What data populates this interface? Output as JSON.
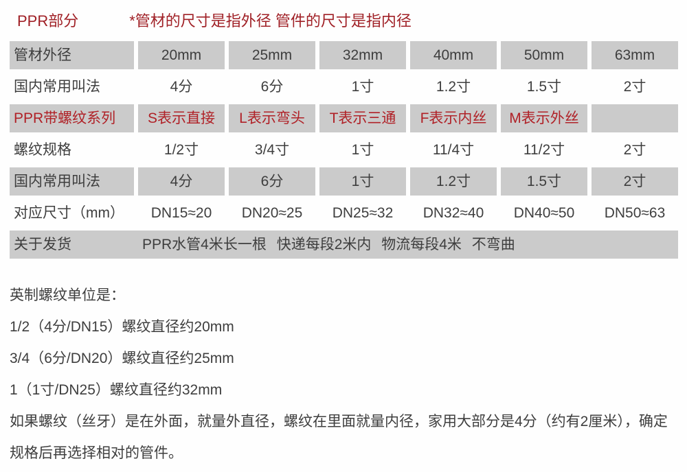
{
  "colors": {
    "title_red": "#a02026",
    "table_red": "#b02127",
    "cell_gray": "#cbcbcb",
    "text_dark": "#3e3e3e",
    "page_bg": "#fefefe"
  },
  "header": {
    "section_title": "PPR部分",
    "note": "*管材的尺寸是指外径 管件的尺寸是指内径"
  },
  "table": {
    "rows": [
      {
        "label": "管材外径",
        "cells": [
          "20mm",
          "25mm",
          "32mm",
          "40mm",
          "50mm",
          "63mm"
        ]
      },
      {
        "label": "国内常用叫法",
        "cells": [
          "4分",
          "6分",
          "1寸",
          "1.2寸",
          "1.5寸",
          "2寸"
        ]
      },
      {
        "label": "PPR带螺纹系列",
        "cells": [
          "S表示直接",
          "L表示弯头",
          "T表示三通",
          "F表示内丝",
          "M表示外丝",
          ""
        ]
      },
      {
        "label": "螺纹规格",
        "cells": [
          "1/2寸",
          "3/4寸",
          "1寸",
          "11/4寸",
          "11/2寸",
          "2寸"
        ]
      },
      {
        "label": "国内常用叫法",
        "cells": [
          "4分",
          "6分",
          "1寸",
          "1.2寸",
          "1.5寸",
          "2寸"
        ]
      },
      {
        "label": "对应尺寸（mm）",
        "cells": [
          "DN15≈20",
          "DN20≈25",
          "DN25≈32",
          "DN32≈40",
          "DN40≈50",
          "DN50≈63"
        ]
      },
      {
        "label": "关于发货",
        "merged": "PPR水管4米长一根 快递每段2米内 物流每段4米 不弯曲"
      }
    ]
  },
  "notes": {
    "heading": "英制螺纹单位是：",
    "lines": [
      "1/2（4分/DN15）螺纹直径约20mm",
      "3/4（6分/DN20）螺纹直径约25mm",
      "1（1寸/DN25）螺纹直径约32mm"
    ],
    "paragraph": "如果螺纹（丝牙）是在外面，就量外直径，螺纹在里面就量内径，家用大部分是4分（约有2厘米），确定规格后再选择相对的管件。"
  }
}
